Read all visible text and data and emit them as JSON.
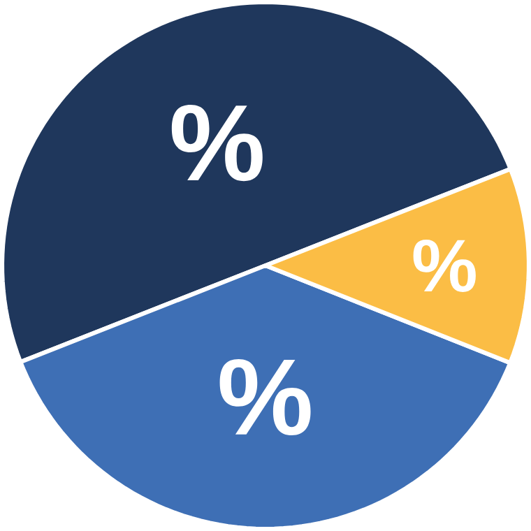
{
  "chart_data": {
    "type": "pie",
    "categories": [
      null,
      null,
      null
    ],
    "values": [
      50,
      38,
      12
    ],
    "colors": [
      "#1f375c",
      "#3e6fb5",
      "#fbbd45"
    ],
    "value_labels": [
      "%",
      "%",
      "%"
    ]
  }
}
